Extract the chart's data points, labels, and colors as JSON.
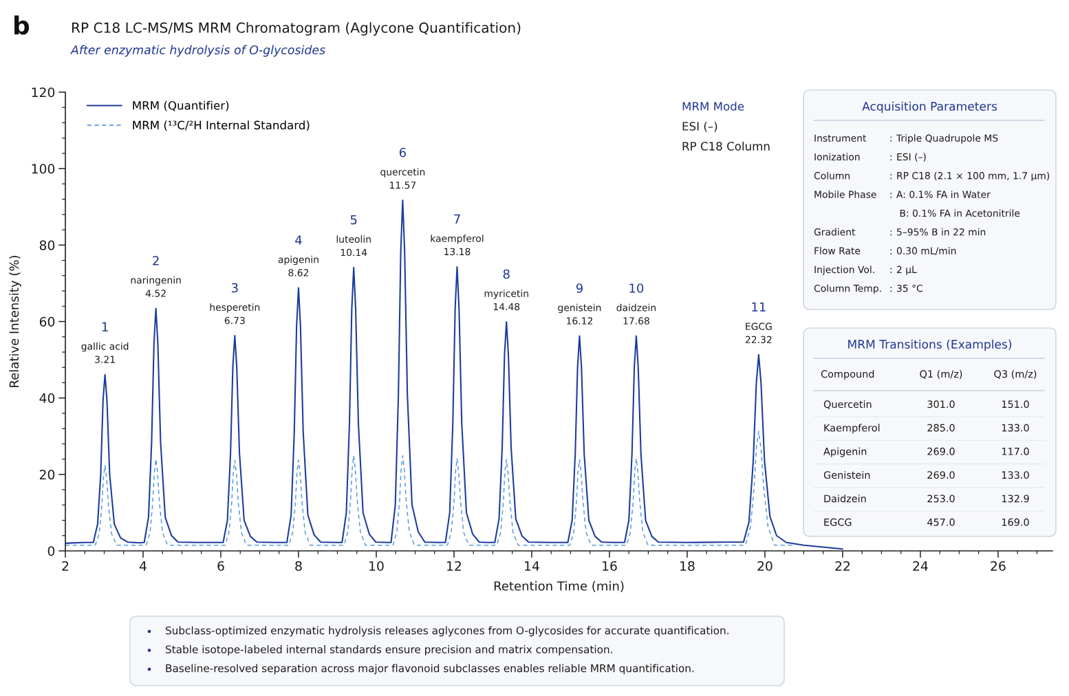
{
  "chart_data": [
    {
      "type": "line",
      "title": "RP C18 LC-MS/MS MRM Chromatogram (Aglycone Quantification)",
      "subtitle": "After enzymatic hydrolysis of O-glycosides",
      "xlabel": "Retention Time (min)",
      "ylabel": "Relative Intensity (%)",
      "legend": "top left",
      "xlim": [
        2,
        27.4
      ],
      "ylim": [
        0,
        120
      ],
      "xticks": [
        2,
        {
          "value": 2.5,
          "label": null
        },
        {
          "value": 3,
          "label": null
        },
        {
          "value": 3.5,
          "label": null
        },
        4,
        {
          "value": 4.5,
          "label": null
        },
        {
          "value": 5,
          "label": null
        },
        {
          "value": 5.5,
          "label": null
        },
        6,
        {
          "value": 6.5,
          "label": null
        },
        {
          "value": 7,
          "label": null
        },
        {
          "value": 7.5,
          "label": null
        },
        8,
        {
          "value": 8.5,
          "label": null
        },
        {
          "value": 9,
          "label": null
        },
        {
          "value": 9.5,
          "label": null
        },
        10,
        {
          "value": 10.5,
          "label": null
        },
        {
          "value": 11,
          "label": null
        },
        {
          "value": 11.5,
          "label": null
        },
        12,
        {
          "value": 12.5,
          "label": null
        },
        {
          "value": 13,
          "label": null
        },
        {
          "value": 13.5,
          "label": null
        },
        14,
        {
          "value": 14.5,
          "label": null
        },
        {
          "value": 15,
          "label": null
        },
        {
          "value": 15.5,
          "label": null
        },
        16,
        {
          "value": 16.5,
          "label": null
        },
        {
          "value": 17,
          "label": null
        },
        {
          "value": 17.5,
          "label": null
        },
        18,
        {
          "value": 18.5,
          "label": null
        },
        {
          "value": 19,
          "label": null
        },
        {
          "value": 19.5,
          "label": null
        },
        20,
        {
          "value": 20.5,
          "label": null
        },
        {
          "value": 21,
          "label": null
        },
        {
          "value": 21.5,
          "label": null
        },
        22,
        {
          "value": 22.5,
          "label": null
        },
        {
          "value": 23,
          "label": null
        },
        {
          "value": 23.5,
          "label": null
        },
        24,
        {
          "value": 24.5,
          "label": null
        },
        {
          "value": 25,
          "label": null
        },
        {
          "value": 25.5,
          "label": null
        },
        26,
        {
          "value": 26.5,
          "label": null
        },
        {
          "value": 27,
          "label": null
        }
      ],
      "yticks": [
        0,
        {
          "value": 4,
          "label": null
        },
        {
          "value": 8,
          "label": null
        },
        {
          "value": 12,
          "label": null
        },
        {
          "value": 16,
          "label": null
        },
        20,
        {
          "value": 24,
          "label": null
        },
        {
          "value": 28,
          "label": null
        },
        {
          "value": 32,
          "label": null
        },
        {
          "value": 36,
          "label": null
        },
        40,
        {
          "value": 44,
          "label": null
        },
        {
          "value": 48,
          "label": null
        },
        {
          "value": 52,
          "label": null
        },
        {
          "value": 56,
          "label": null
        },
        60,
        {
          "value": 64,
          "label": null
        },
        {
          "value": 68,
          "label": null
        },
        {
          "value": 72,
          "label": null
        },
        {
          "value": 76,
          "label": null
        },
        80,
        {
          "value": 84,
          "label": null
        },
        {
          "value": 88,
          "label": null
        },
        {
          "value": 92,
          "label": null
        },
        {
          "value": 96,
          "label": null
        },
        100,
        {
          "value": 104,
          "label": null
        },
        {
          "value": 108,
          "label": null
        },
        {
          "value": 112,
          "label": null
        },
        {
          "value": 116,
          "label": null
        },
        120
      ],
      "series": [
        {
          "name": "MRM (Quantifier)",
          "color": "#1c3d9e",
          "line_style": "solid",
          "x": [
            2.0,
            2.5,
            2.72,
            2.83,
            2.91,
            2.97,
            3.02,
            3.07,
            3.14,
            3.26,
            3.42,
            3.6,
            3.9,
            4.03,
            4.14,
            4.22,
            4.28,
            4.33,
            4.38,
            4.45,
            4.57,
            4.73,
            4.9,
            5.4,
            6.06,
            6.17,
            6.25,
            6.31,
            6.36,
            6.41,
            6.48,
            6.6,
            6.76,
            6.93,
            7.4,
            7.7,
            7.81,
            7.89,
            7.95,
            8.0,
            8.05,
            8.12,
            8.24,
            8.4,
            8.57,
            9.0,
            9.12,
            9.23,
            9.31,
            9.37,
            9.42,
            9.47,
            9.54,
            9.66,
            9.82,
            9.99,
            10.3,
            10.38,
            10.49,
            10.57,
            10.63,
            10.68,
            10.73,
            10.8,
            10.92,
            11.08,
            11.25,
            11.6,
            11.78,
            11.89,
            11.97,
            12.03,
            12.08,
            12.13,
            12.2,
            12.32,
            12.48,
            12.65,
            12.85,
            13.05,
            13.16,
            13.24,
            13.3,
            13.35,
            13.4,
            13.47,
            13.59,
            13.75,
            13.92,
            14.5,
            14.93,
            15.04,
            15.12,
            15.18,
            15.23,
            15.28,
            15.35,
            15.47,
            15.63,
            15.8,
            16.1,
            16.39,
            16.5,
            16.58,
            16.64,
            16.69,
            16.74,
            16.81,
            16.93,
            17.09,
            17.26,
            18.0,
            19.0,
            19.45,
            19.59,
            19.7,
            19.78,
            19.84,
            19.9,
            19.99,
            20.13,
            20.3,
            20.55,
            21.0,
            21.5,
            22.0
          ],
          "values": [
            2.0,
            2.2,
            2.2,
            7.0,
            20.0,
            39.5,
            46.1,
            39.5,
            20.0,
            7.0,
            3.4,
            2.3,
            2.1,
            2.2,
            8.8,
            28.5,
            54.2,
            63.4,
            54.2,
            28.5,
            8.8,
            4.0,
            2.3,
            2.2,
            2.2,
            8.0,
            25.5,
            48.2,
            56.3,
            48.2,
            25.5,
            8.0,
            3.8,
            2.3,
            2.2,
            2.2,
            9.4,
            31.0,
            58.8,
            68.8,
            58.8,
            31.0,
            9.4,
            4.2,
            2.3,
            2.2,
            2.2,
            10.0,
            33.3,
            63.3,
            74.1,
            63.3,
            33.3,
            10.0,
            4.4,
            2.3,
            2.2,
            2.2,
            12.0,
            41.0,
            78.3,
            91.7,
            78.3,
            41.0,
            12.0,
            5.0,
            2.3,
            2.2,
            2.2,
            10.0,
            33.3,
            63.5,
            74.3,
            63.5,
            33.3,
            10.0,
            4.4,
            2.3,
            2.2,
            2.2,
            8.4,
            27.0,
            51.3,
            59.9,
            51.3,
            27.0,
            8.4,
            3.9,
            2.3,
            2.2,
            2.2,
            8.0,
            25.4,
            48.1,
            56.2,
            48.1,
            25.4,
            8.0,
            3.8,
            2.3,
            2.2,
            2.2,
            8.0,
            25.4,
            48.1,
            56.2,
            48.1,
            25.4,
            8.0,
            3.8,
            2.3,
            2.2,
            2.3,
            2.3,
            7.5,
            23.5,
            44.0,
            51.3,
            44.0,
            23.5,
            9.0,
            4.0,
            2.2,
            1.5,
            1.0,
            0.5
          ]
        },
        {
          "name": "MRM (¹³C/²H Internal Standard)",
          "color": "#5b9bd8",
          "line_style": "dashed",
          "x": [
            2.0,
            2.77,
            2.87,
            2.94,
            2.98,
            3.02,
            3.06,
            3.11,
            3.19,
            3.32,
            4.08,
            4.18,
            4.25,
            4.29,
            4.33,
            4.37,
            4.42,
            4.5,
            4.63,
            6.11,
            6.21,
            6.28,
            6.32,
            6.36,
            6.4,
            6.45,
            6.53,
            6.66,
            7.75,
            7.85,
            7.92,
            7.96,
            8.0,
            8.04,
            8.09,
            8.17,
            8.3,
            9.17,
            9.27,
            9.34,
            9.38,
            9.42,
            9.46,
            9.51,
            9.59,
            9.72,
            10.43,
            10.53,
            10.6,
            10.64,
            10.68,
            10.72,
            10.77,
            10.85,
            10.98,
            11.83,
            11.93,
            12.0,
            12.04,
            12.08,
            12.12,
            12.17,
            12.25,
            12.38,
            13.1,
            13.2,
            13.27,
            13.31,
            13.35,
            13.39,
            13.44,
            13.52,
            13.65,
            14.98,
            15.08,
            15.15,
            15.19,
            15.23,
            15.27,
            15.32,
            15.4,
            15.53,
            16.44,
            16.54,
            16.61,
            16.65,
            16.69,
            16.73,
            16.78,
            16.86,
            16.99,
            19.5,
            19.63,
            19.72,
            19.78,
            19.84,
            19.9,
            19.97,
            20.08,
            20.25,
            20.7
          ],
          "values": [
            1.5,
            1.5,
            4.5,
            11.9,
            19.2,
            22.3,
            19.2,
            11.9,
            4.5,
            1.5,
            1.5,
            4.8,
            12.8,
            20.6,
            24.0,
            20.6,
            12.8,
            4.8,
            1.5,
            1.5,
            4.8,
            12.6,
            20.4,
            23.7,
            20.4,
            12.6,
            4.8,
            1.5,
            1.5,
            4.8,
            12.7,
            20.5,
            23.8,
            20.5,
            12.7,
            4.8,
            1.5,
            1.5,
            5.0,
            13.2,
            21.4,
            24.9,
            21.4,
            13.2,
            5.0,
            1.5,
            1.5,
            5.0,
            13.2,
            21.4,
            24.9,
            21.4,
            13.2,
            5.0,
            1.5,
            1.5,
            4.8,
            12.8,
            20.7,
            24.1,
            20.7,
            12.8,
            4.8,
            1.5,
            1.5,
            4.8,
            12.7,
            20.6,
            23.9,
            20.6,
            12.7,
            4.8,
            1.5,
            1.5,
            4.8,
            12.7,
            20.6,
            23.9,
            20.6,
            12.7,
            4.8,
            1.5,
            1.5,
            4.9,
            12.9,
            20.8,
            24.2,
            20.8,
            12.9,
            4.9,
            1.5,
            1.5,
            6.3,
            16.4,
            26.8,
            31.3,
            26.8,
            16.4,
            6.3,
            1.5,
            1.5
          ]
        }
      ],
      "annotations": [
        {
          "text": "gallic acid\n3.21",
          "x": 3.02,
          "y": 46.1
        },
        {
          "text": "naringenin\n4.52",
          "x": 4.33,
          "y": 63.4
        },
        {
          "text": "hesperetin\n6.73",
          "x": 6.36,
          "y": 56.3
        },
        {
          "text": "apigenin\n8.62",
          "x": 8.0,
          "y": 68.8
        },
        {
          "text": "luteolin\n10.14",
          "x": 9.42,
          "y": 74.1
        },
        {
          "text": "quercetin\n11.57",
          "x": 10.68,
          "y": 91.7
        },
        {
          "text": "kaempferol\n13.18",
          "x": 12.08,
          "y": 74.3
        },
        {
          "text": "myricetin\n14.48",
          "x": 13.35,
          "y": 59.9
        },
        {
          "text": "genistein\n16.12",
          "x": 15.23,
          "y": 56.2
        },
        {
          "text": "daidzein\n17.68",
          "x": 16.69,
          "y": 56.2
        },
        {
          "text": "EGCG\n22.32",
          "x": 19.84,
          "y": 51.3
        },
        "b",
        "MRM Mode\nESI (–)\nRP C18 Column",
        "1",
        "2",
        "3",
        "4",
        "5",
        "6",
        "7",
        "8",
        "9",
        "10",
        "11"
      ]
    },
    {
      "type": "other",
      "title": "Acquisition Parameters",
      "y_categories": [
        "Instrument",
        "Ionization",
        "Column",
        "Mobile Phase",
        null,
        "Gradient",
        "Flow Rate",
        "Injection Vol.",
        "Column Temp."
      ],
      "cell_labels": [
        [
          ":",
          "Triple Quadrupole MS"
        ],
        [
          ":",
          "ESI (–)"
        ],
        [
          ":",
          "RP C18 (2.1 × 100 mm, 1.7 µm)"
        ],
        [
          ":",
          "A: 0.1% FA in Water"
        ],
        [
          null,
          " B: 0.1% FA in Acetonitrile"
        ],
        [
          ":",
          "5–95% B in 22 min"
        ],
        [
          ":",
          "0.30 mL/min"
        ],
        [
          ":",
          "2 µL"
        ],
        [
          ":",
          "35 °C"
        ]
      ]
    },
    {
      "type": "other",
      "title": "MRM Transitions (Examples)",
      "categories": [
        "Compound",
        "Q1 (m/z)",
        "Q3 (m/z)"
      ],
      "y_categories": [
        "Quercetin",
        "Kaempferol",
        "Apigenin",
        "Genistein",
        "Daidzein",
        "EGCG"
      ],
      "cell_labels": [
        [
          "301.0",
          "151.0"
        ],
        [
          "285.0",
          "133.0"
        ],
        [
          "269.0",
          "117.0"
        ],
        [
          "269.0",
          "133.0"
        ],
        [
          "253.0",
          "132.9"
        ],
        [
          "457.0",
          "169.0"
        ]
      ]
    },
    {
      "type": "other",
      "annotations": [
        "Subclass-optimized enzymatic hydrolysis releases aglycones from O-glycosides for accurate quantification.",
        "Stable isotope-labeled internal standards ensure precision and matrix compensation.",
        "Baseline-resolved separation across major flavonoid subclasses enables reliable MRM quantification."
      ]
    }
  ]
}
